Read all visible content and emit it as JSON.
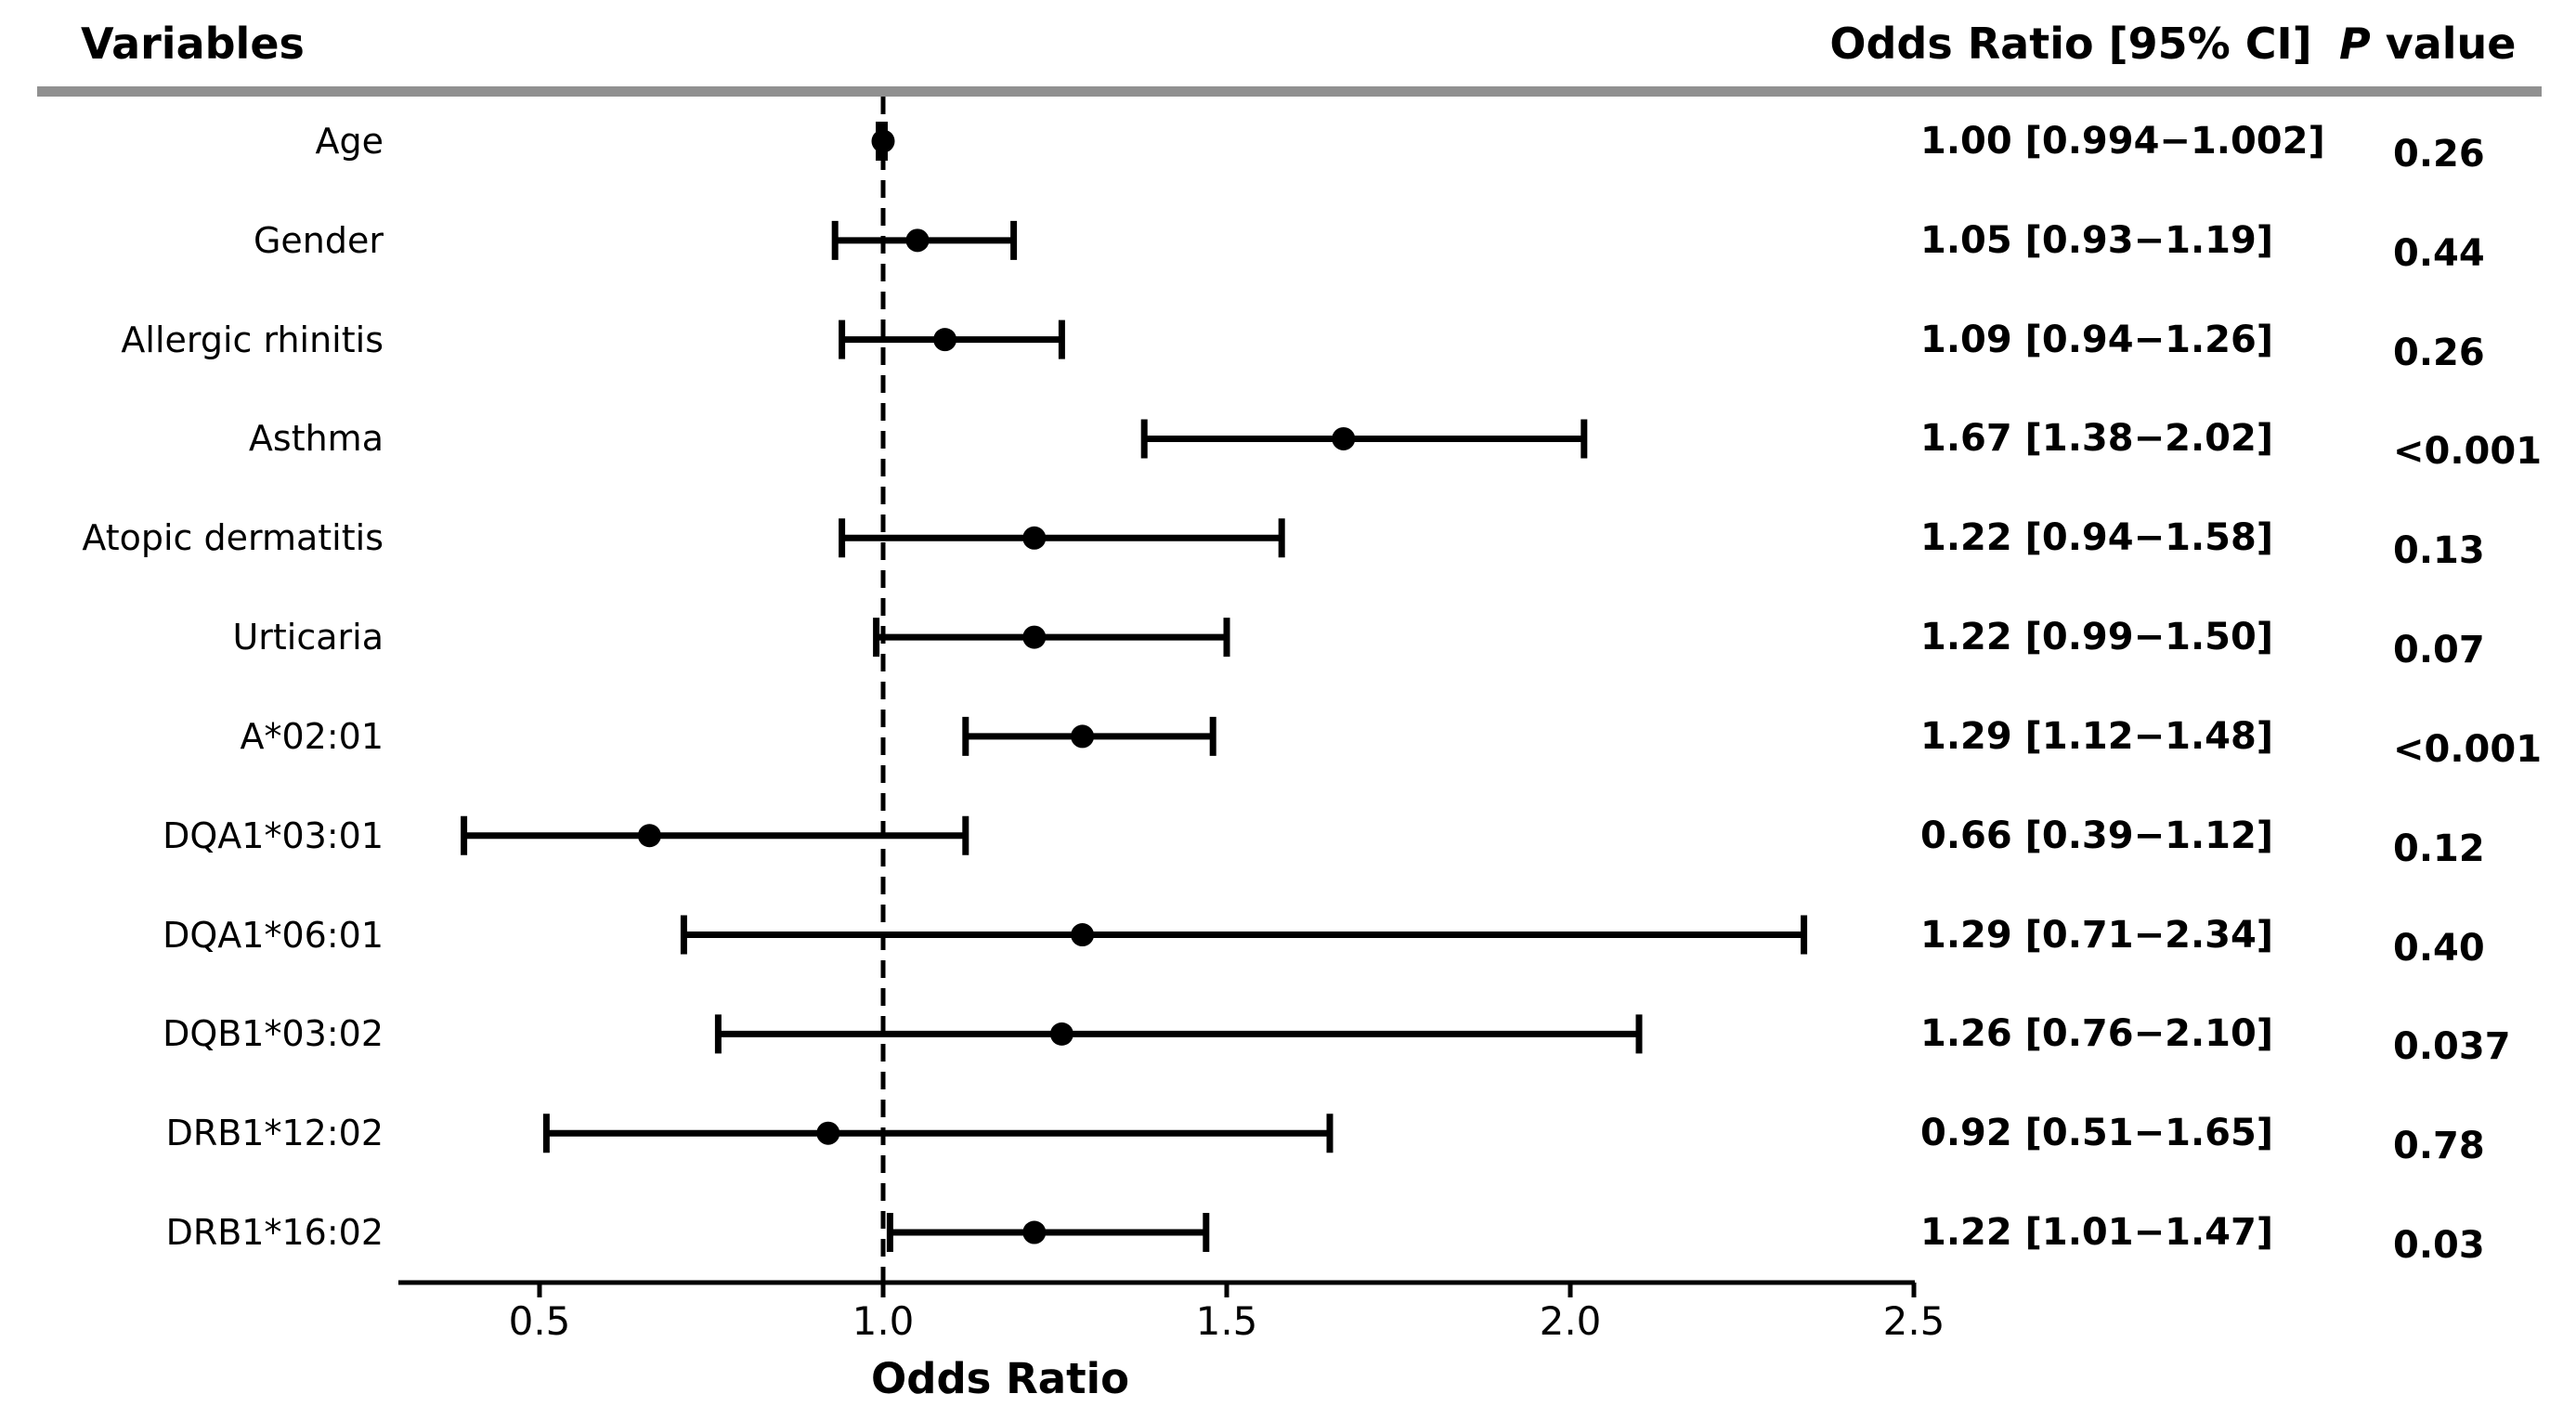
{
  "figure": {
    "headers": {
      "variables": "Variables",
      "or_ci": "Odds Ratio [95% CI]",
      "p_italic": "P",
      "p_rest": " value"
    }
  },
  "chart_data": {
    "type": "scatter",
    "subtype": "forest-plot",
    "title": "",
    "xlabel": "Odds Ratio",
    "ylabel": "",
    "columns": [
      "Variables",
      "Odds Ratio [95% CI]",
      "P value"
    ],
    "x_ticks": [
      0.5,
      1.0,
      1.5,
      2.0,
      2.5
    ],
    "x_tick_labels": [
      "0.5",
      "1.0",
      "1.5",
      "2.0",
      "2.5"
    ],
    "xlim": [
      0.3,
      2.52
    ],
    "reference_line": {
      "x": 1.0,
      "style": "dashed"
    },
    "grid": false,
    "legend": false,
    "rows": [
      {
        "label": "Age",
        "or": 1.0,
        "ci_low": 0.994,
        "ci_high": 1.002,
        "or_ci_text": "1.00 [0.994−1.002]",
        "p_text": "0.26"
      },
      {
        "label": "Gender",
        "or": 1.05,
        "ci_low": 0.93,
        "ci_high": 1.19,
        "or_ci_text": "1.05 [0.93−1.19]",
        "p_text": "0.44"
      },
      {
        "label": "Allergic rhinitis",
        "or": 1.09,
        "ci_low": 0.94,
        "ci_high": 1.26,
        "or_ci_text": "1.09 [0.94−1.26]",
        "p_text": "0.26"
      },
      {
        "label": "Asthma",
        "or": 1.67,
        "ci_low": 1.38,
        "ci_high": 2.02,
        "or_ci_text": "1.67 [1.38−2.02]",
        "p_text": "<0.001"
      },
      {
        "label": "Atopic dermatitis",
        "or": 1.22,
        "ci_low": 0.94,
        "ci_high": 1.58,
        "or_ci_text": "1.22 [0.94−1.58]",
        "p_text": "0.13"
      },
      {
        "label": "Urticaria",
        "or": 1.22,
        "ci_low": 0.99,
        "ci_high": 1.5,
        "or_ci_text": "1.22 [0.99−1.50]",
        "p_text": "0.07"
      },
      {
        "label": "A*02:01",
        "or": 1.29,
        "ci_low": 1.12,
        "ci_high": 1.48,
        "or_ci_text": "1.29 [1.12−1.48]",
        "p_text": "<0.001"
      },
      {
        "label": "DQA1*03:01",
        "or": 0.66,
        "ci_low": 0.39,
        "ci_high": 1.12,
        "or_ci_text": "0.66 [0.39−1.12]",
        "p_text": "0.12"
      },
      {
        "label": "DQA1*06:01",
        "or": 1.29,
        "ci_low": 0.71,
        "ci_high": 2.34,
        "or_ci_text": "1.29 [0.71−2.34]",
        "p_text": "0.40"
      },
      {
        "label": "DQB1*03:02",
        "or": 1.26,
        "ci_low": 0.76,
        "ci_high": 2.1,
        "or_ci_text": "1.26 [0.76−2.10]",
        "p_text": "0.037"
      },
      {
        "label": "DRB1*12:02",
        "or": 0.92,
        "ci_low": 0.51,
        "ci_high": 1.65,
        "or_ci_text": "0.92 [0.51−1.65]",
        "p_text": "0.78"
      },
      {
        "label": "DRB1*16:02",
        "or": 1.22,
        "ci_low": 1.01,
        "ci_high": 1.47,
        "or_ci_text": "1.22 [1.01−1.47]",
        "p_text": "0.03"
      }
    ],
    "colors": {
      "marker": "#000000",
      "error_bar": "#000000",
      "axis": "#000000",
      "reference_line": "#000000",
      "separator": "#909090",
      "text": "#000000"
    }
  }
}
